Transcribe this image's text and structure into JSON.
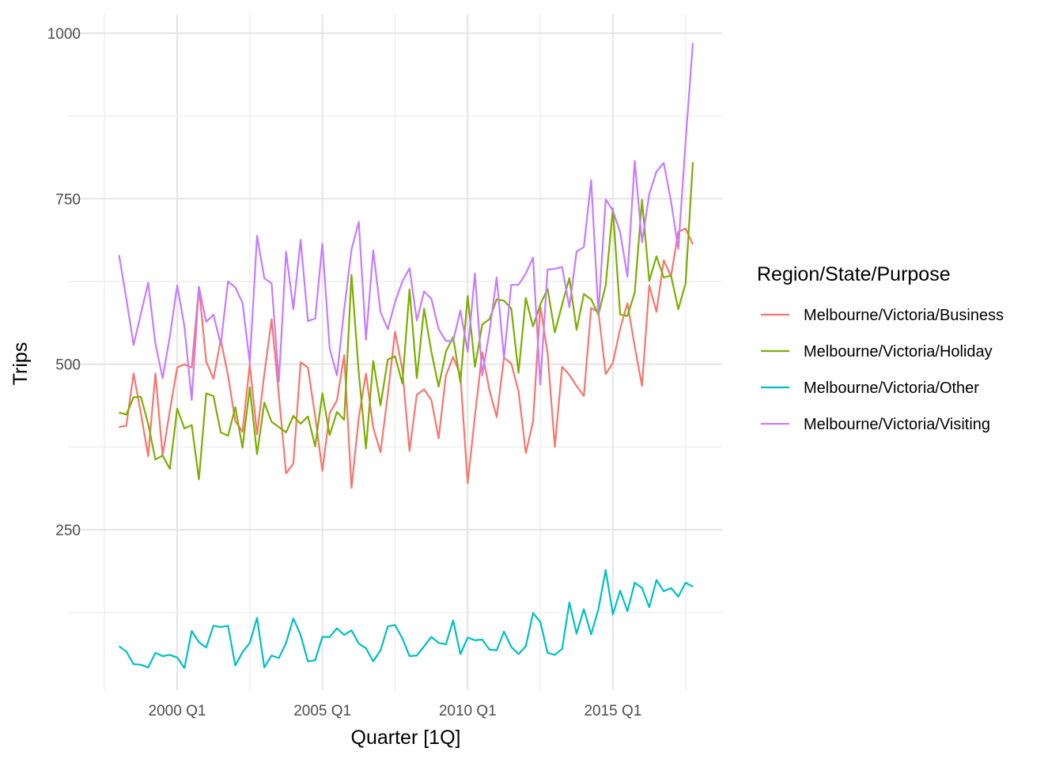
{
  "chart_data": {
    "type": "line",
    "xlabel": "Quarter [1Q]",
    "ylabel": "Trips",
    "x_start": "1998 Q1",
    "xlim": [
      "1997 Q3",
      "2018 Q2"
    ],
    "ylim": [
      0,
      1000
    ],
    "x_ticks": [
      "2000 Q1",
      "2005 Q1",
      "2010 Q1",
      "2015 Q1"
    ],
    "y_ticks": [
      250,
      500,
      750,
      1000
    ],
    "grid": true,
    "legend": {
      "title": "Region/State/Purpose",
      "position": "right"
    },
    "series": [
      {
        "name": "Melbourne/Victoria/Business",
        "color": "#F8766D",
        "values": [
          405,
          407,
          486,
          426,
          361,
          486,
          362,
          430,
          495,
          500,
          495,
          617,
          504,
          478,
          537,
          483,
          414,
          398,
          500,
          394,
          485,
          568,
          453,
          335,
          350,
          503,
          495,
          421,
          339,
          426,
          445,
          514,
          313,
          419,
          486,
          404,
          367,
          454,
          549,
          492,
          369,
          454,
          462,
          446,
          388,
          483,
          511,
          484,
          320,
          422,
          518,
          461,
          420,
          510,
          501,
          459,
          366,
          413,
          588,
          517,
          375,
          496,
          484,
          467,
          452,
          585,
          579,
          485,
          502,
          554,
          592,
          527,
          467,
          619,
          579,
          657,
          633,
          700,
          705,
          681
        ]
      },
      {
        "name": "Melbourne/Victoria/Holiday",
        "color": "#7CAE00",
        "values": [
          427,
          424,
          450,
          451,
          410,
          356,
          362,
          342,
          433,
          403,
          408,
          326,
          456,
          452,
          397,
          392,
          435,
          374,
          465,
          364,
          442,
          413,
          405,
          397,
          422,
          410,
          421,
          376,
          456,
          393,
          428,
          416,
          635,
          487,
          373,
          505,
          438,
          507,
          512,
          471,
          613,
          479,
          584,
          519,
          466,
          519,
          541,
          473,
          603,
          496,
          560,
          568,
          598,
          596,
          584,
          487,
          600,
          557,
          590,
          614,
          548,
          590,
          630,
          552,
          606,
          598,
          575,
          619,
          735,
          575,
          573,
          608,
          748,
          626,
          663,
          631,
          634,
          583,
          622,
          805
        ]
      },
      {
        "name": "Melbourne/Victoria/Other",
        "color": "#00BFC4",
        "values": [
          74,
          66,
          47,
          46,
          42,
          64,
          59,
          61,
          57,
          41,
          97,
          80,
          72,
          105,
          103,
          105,
          45,
          65,
          79,
          117,
          42,
          60,
          56,
          79,
          116,
          91,
          51,
          53,
          88,
          88,
          101,
          91,
          98,
          78,
          71,
          51,
          68,
          104,
          106,
          86,
          59,
          60,
          74,
          88,
          79,
          77,
          113,
          62,
          87,
          83,
          84,
          69,
          68,
          96,
          73,
          62,
          74,
          124,
          111,
          64,
          61,
          70,
          140,
          93,
          130,
          92,
          130,
          189,
          122,
          158,
          127,
          170,
          162,
          133,
          174,
          157,
          162,
          149,
          170,
          164
        ]
      },
      {
        "name": "Melbourne/Victoria/Visiting",
        "color": "#C77CFF",
        "values": [
          665,
          599,
          529,
          576,
          623,
          531,
          479,
          542,
          619,
          557,
          446,
          617,
          564,
          575,
          530,
          625,
          616,
          593,
          502,
          694,
          630,
          622,
          474,
          670,
          583,
          688,
          565,
          569,
          682,
          524,
          483,
          583,
          673,
          715,
          537,
          672,
          579,
          553,
          594,
          625,
          645,
          566,
          610,
          599,
          553,
          535,
          535,
          581,
          519,
          637,
          483,
          549,
          631,
          509,
          620,
          620,
          637,
          661,
          469,
          643,
          644,
          647,
          586,
          670,
          677,
          778,
          577,
          749,
          732,
          699,
          632,
          807,
          684,
          757,
          791,
          804,
          746,
          674,
          836,
          985
        ]
      }
    ]
  }
}
